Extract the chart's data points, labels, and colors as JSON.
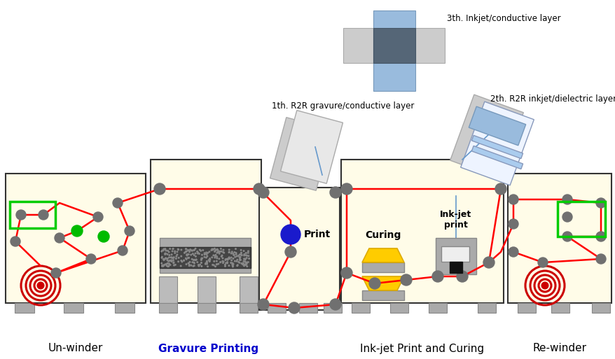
{
  "title_3rd": "3th. Inkjet/conductive layer",
  "title_2nd": "2th. R2R inkjet/dielectric layer",
  "title_1st": "1th. R2R gravure/conductive layer",
  "label_unwinder": "Un-winder",
  "label_gravure": "Gravure Printing",
  "label_inkjet": "Ink-jet Print and Curing",
  "label_rewinder": "Re-winder",
  "label_print": "Print",
  "label_curing": "Curing",
  "label_inkjet_print": "Ink-jet\nprint",
  "panel_color": "#fffce8",
  "red": "#ff0000",
  "blue_dot": "#1a1acc",
  "green": "#00bb00",
  "roller_gray": "#808080",
  "dark_gray": "#555555"
}
